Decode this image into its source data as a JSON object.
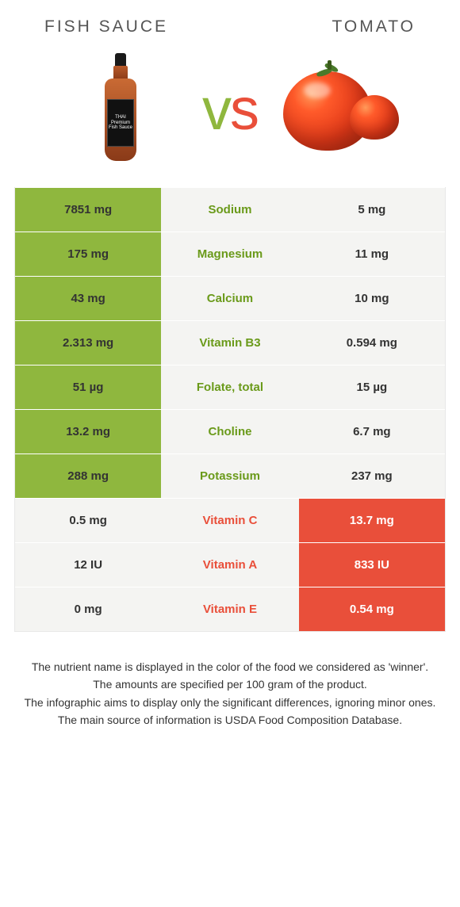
{
  "header": {
    "left_title": "FISH SAUCE",
    "right_title": "TOMATO",
    "vs_label": "vs",
    "vs_color_left": "#8fb73e",
    "vs_color_right": "#e94f3a"
  },
  "colors": {
    "green_bg": "#8fb73e",
    "red_bg": "#e94f3a",
    "light_bg": "#f4f4f2",
    "green_text": "#6a9a1a",
    "red_text": "#e94f3a",
    "border": "#e8e8e8"
  },
  "table": {
    "type": "comparison-table",
    "columns": [
      "left_value",
      "nutrient",
      "right_value"
    ],
    "rows": [
      {
        "left": "7851 mg",
        "name": "Sodium",
        "right": "5 mg",
        "winner": "left"
      },
      {
        "left": "175 mg",
        "name": "Magnesium",
        "right": "11 mg",
        "winner": "left"
      },
      {
        "left": "43 mg",
        "name": "Calcium",
        "right": "10 mg",
        "winner": "left"
      },
      {
        "left": "2.313 mg",
        "name": "Vitamin B3",
        "right": "0.594 mg",
        "winner": "left"
      },
      {
        "left": "51 µg",
        "name": "Folate, total",
        "right": "15 µg",
        "winner": "left"
      },
      {
        "left": "13.2 mg",
        "name": "Choline",
        "right": "6.7 mg",
        "winner": "left"
      },
      {
        "left": "288 mg",
        "name": "Potassium",
        "right": "237 mg",
        "winner": "left"
      },
      {
        "left": "0.5 mg",
        "name": "Vitamin C",
        "right": "13.7 mg",
        "winner": "right"
      },
      {
        "left": "12 IU",
        "name": "Vitamin A",
        "right": "833 IU",
        "winner": "right"
      },
      {
        "left": "0 mg",
        "name": "Vitamin E",
        "right": "0.54 mg",
        "winner": "right"
      }
    ]
  },
  "footnotes": {
    "line1": "The nutrient name is displayed in the color of the food we considered as 'winner'.",
    "line2": "The amounts are specified per 100 gram of the product.",
    "line3": "The infographic aims to display only the significant differences, ignoring minor ones.",
    "line4": "The main source of information is USDA Food Composition Database."
  }
}
